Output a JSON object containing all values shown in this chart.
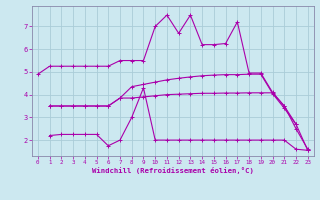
{
  "xlabel": "Windchill (Refroidissement éolien,°C)",
  "background_color": "#cce8f0",
  "grid_color": "#aaccd8",
  "line_color": "#aa00aa",
  "spine_color": "#8888aa",
  "x_ticks": [
    0,
    1,
    2,
    3,
    4,
    5,
    6,
    7,
    8,
    9,
    10,
    11,
    12,
    13,
    14,
    15,
    16,
    17,
    18,
    19,
    20,
    21,
    22,
    23
  ],
  "y_ticks": [
    2,
    3,
    4,
    5,
    6,
    7
  ],
  "ylim": [
    1.3,
    7.9
  ],
  "xlim": [
    -0.5,
    23.5
  ],
  "s0_x": [
    0,
    1,
    2,
    3,
    4,
    5,
    6,
    7,
    8,
    9,
    10,
    11,
    12,
    13,
    14,
    15,
    16,
    17,
    18,
    19,
    20,
    21,
    22
  ],
  "s0_y": [
    4.9,
    5.25,
    5.25,
    5.25,
    5.25,
    5.25,
    5.25,
    5.5,
    5.5,
    5.5,
    7.0,
    7.5,
    6.7,
    7.5,
    6.2,
    6.2,
    6.25,
    7.2,
    4.95,
    4.95,
    4.1,
    3.5,
    2.7
  ],
  "s1_x": [
    1,
    2,
    3,
    4,
    5,
    6,
    7,
    8,
    9,
    10,
    11,
    12,
    13,
    14,
    15,
    16,
    17,
    18,
    19,
    20,
    21,
    22,
    23
  ],
  "s1_y": [
    3.5,
    3.5,
    3.5,
    3.5,
    3.5,
    3.5,
    3.85,
    4.35,
    4.45,
    4.55,
    4.65,
    4.72,
    4.78,
    4.83,
    4.86,
    4.88,
    4.88,
    4.9,
    4.9,
    4.05,
    3.4,
    2.7,
    1.55
  ],
  "s2_x": [
    1,
    2,
    3,
    4,
    5,
    6,
    7,
    8,
    9,
    10,
    11,
    12,
    13,
    14,
    15,
    16,
    17,
    18,
    19,
    20,
    21,
    22,
    23
  ],
  "s2_y": [
    3.5,
    3.5,
    3.5,
    3.5,
    3.5,
    3.5,
    3.85,
    3.85,
    3.9,
    3.95,
    4.0,
    4.02,
    4.04,
    4.06,
    4.06,
    4.07,
    4.07,
    4.08,
    4.08,
    4.08,
    3.5,
    2.5,
    1.6
  ],
  "s3_x": [
    1,
    2,
    3,
    4,
    5,
    6,
    7,
    8,
    9,
    10,
    11,
    12,
    13,
    14,
    15,
    16,
    17,
    18,
    19,
    20,
    21,
    22,
    23
  ],
  "s3_y": [
    2.2,
    2.25,
    2.25,
    2.25,
    2.25,
    1.75,
    2.0,
    3.0,
    4.3,
    2.0,
    2.0,
    2.0,
    2.0,
    2.0,
    2.0,
    2.0,
    2.0,
    2.0,
    2.0,
    2.0,
    2.0,
    1.6,
    1.55
  ]
}
